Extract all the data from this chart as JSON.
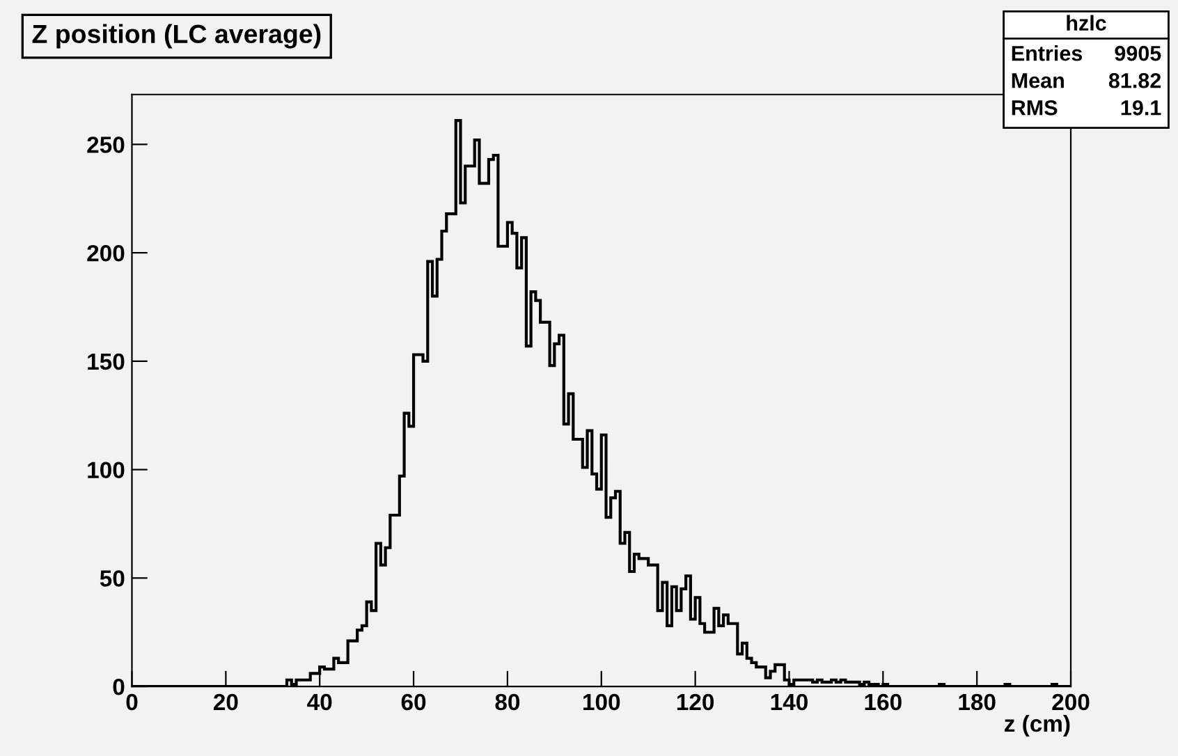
{
  "chart_data": {
    "type": "histogram",
    "title": "Z position (LC average)",
    "xlabel": "z (cm)",
    "color": "#000000",
    "bins": [
      0,
      1,
      2,
      3,
      4,
      5,
      6,
      7,
      8,
      9,
      10,
      11,
      12,
      13,
      14,
      15,
      16,
      17,
      18,
      19,
      20,
      21,
      22,
      23,
      24,
      25,
      26,
      27,
      28,
      29,
      30,
      31,
      32,
      33,
      34,
      35,
      36,
      37,
      38,
      39,
      40,
      41,
      42,
      43,
      44,
      45,
      46,
      47,
      48,
      49,
      50,
      51,
      52,
      53,
      54,
      55,
      56,
      57,
      58,
      59,
      60,
      61,
      62,
      63,
      64,
      65,
      66,
      67,
      68,
      69,
      70,
      71,
      72,
      73,
      74,
      75,
      76,
      77,
      78,
      79,
      80,
      81,
      82,
      83,
      84,
      85,
      86,
      87,
      88,
      89,
      90,
      91,
      92,
      93,
      94,
      95,
      96,
      97,
      98,
      99,
      100,
      101,
      102,
      103,
      104,
      105,
      106,
      107,
      108,
      109,
      110,
      111,
      112,
      113,
      114,
      115,
      116,
      117,
      118,
      119,
      120,
      121,
      122,
      123,
      124,
      125,
      126,
      127,
      128,
      129,
      130,
      131,
      132,
      133,
      134,
      135,
      136,
      137,
      138,
      139,
      140,
      141,
      142,
      143,
      144,
      145,
      146,
      147,
      148,
      149,
      150,
      151,
      152,
      153,
      154,
      155,
      156,
      157,
      158,
      159,
      160,
      161,
      162,
      163,
      164,
      165,
      166,
      167,
      168,
      169,
      170,
      171,
      172,
      173,
      174,
      175,
      176,
      177,
      178,
      179,
      180,
      181,
      182,
      183,
      184,
      185,
      186,
      187,
      188,
      189,
      190,
      191,
      192,
      193,
      194,
      195,
      196,
      197,
      198,
      199,
      200
    ],
    "values": [
      0,
      0,
      0,
      0,
      0,
      0,
      0,
      0,
      0,
      0,
      0,
      0,
      0,
      0,
      0,
      0,
      0,
      0,
      0,
      0,
      0,
      0,
      0,
      0,
      0,
      0,
      0,
      0,
      0,
      0,
      0,
      0,
      0,
      3,
      1,
      3,
      3,
      3,
      6,
      6,
      9,
      8,
      8,
      13,
      11,
      11,
      21,
      21,
      26,
      28,
      39,
      35,
      66,
      56,
      64,
      79,
      79,
      97,
      126,
      120,
      153,
      153,
      150,
      196,
      180,
      197,
      210,
      218,
      218,
      261,
      223,
      240,
      240,
      252,
      232,
      232,
      243,
      245,
      203,
      203,
      214,
      209,
      193,
      207,
      157,
      182,
      178,
      168,
      168,
      148,
      158,
      162,
      121,
      135,
      114,
      114,
      101,
      118,
      98,
      91,
      116,
      78,
      87,
      90,
      66,
      71,
      53,
      61,
      59,
      59,
      56,
      56,
      35,
      48,
      28,
      46,
      35,
      45,
      51,
      31,
      41,
      29,
      25,
      25,
      36,
      28,
      33,
      29,
      29,
      15,
      20,
      13,
      11,
      9,
      9,
      4,
      7,
      10,
      10,
      3,
      1,
      3,
      3,
      3,
      3,
      2,
      3,
      2,
      2,
      3,
      2,
      3,
      2,
      2,
      2,
      1,
      2,
      1,
      1,
      0,
      1,
      0,
      0,
      0,
      0,
      0,
      0,
      0,
      0,
      0,
      0,
      0,
      1,
      0,
      0,
      0,
      0,
      0,
      0,
      0,
      0,
      0,
      0,
      0,
      0,
      0,
      1,
      0,
      0,
      0,
      0,
      0,
      0,
      0,
      0,
      0,
      1,
      0,
      0,
      0
    ],
    "xlim": [
      0,
      200
    ],
    "ylim": [
      0,
      273
    ],
    "xticks": [
      0,
      20,
      40,
      60,
      80,
      100,
      120,
      140,
      160,
      180,
      200
    ],
    "yticks": [
      0,
      50,
      100,
      150,
      200,
      250
    ],
    "grid": false,
    "annotations": [
      "hzlc",
      "Entries",
      "9905",
      "Mean",
      "81.82",
      "RMS",
      "19.1"
    ]
  }
}
